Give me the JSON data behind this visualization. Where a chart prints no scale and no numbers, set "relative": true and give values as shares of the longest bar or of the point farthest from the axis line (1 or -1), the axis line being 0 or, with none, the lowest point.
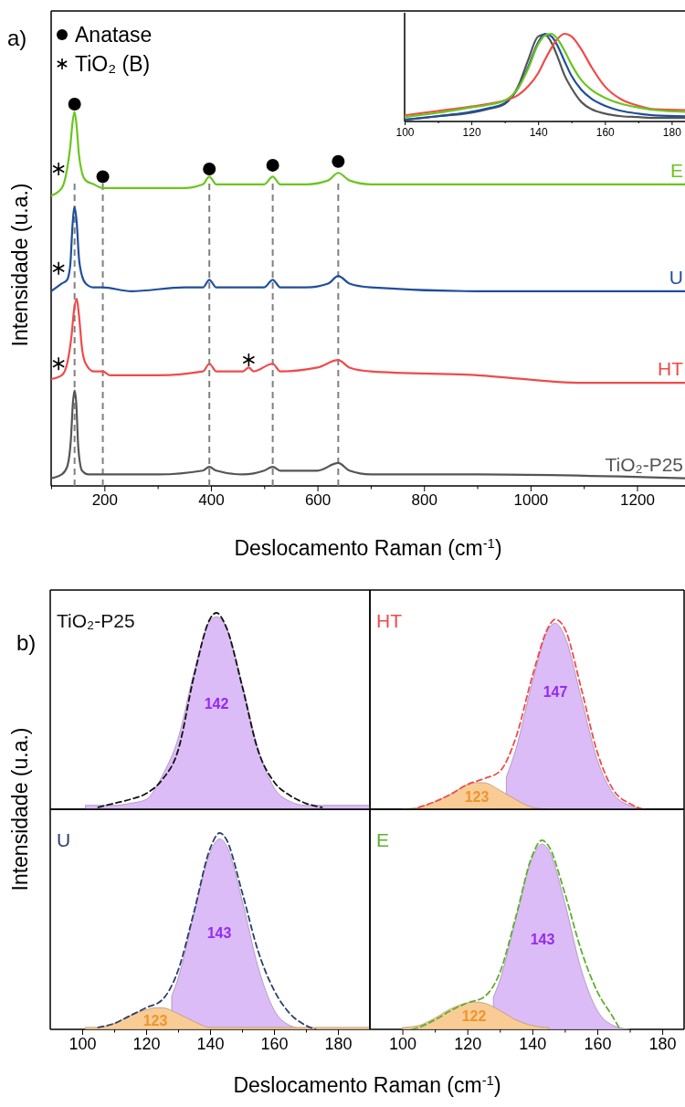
{
  "chart_data": [
    {
      "type": "line",
      "relative": true,
      "xlabel": "Deslocamento Raman (cm$^{-1}$)",
      "ylabel": "Intensidade (u.a.)",
      "xlim": [
        100,
        1290
      ],
      "xticks": [
        {
          "value": 100,
          "label": null
        },
        200,
        {
          "value": 300,
          "label": null
        },
        400,
        {
          "value": 500,
          "label": null
        },
        600,
        {
          "value": 700,
          "label": null
        },
        800,
        {
          "value": 900,
          "label": null
        },
        1000,
        {
          "value": 1100,
          "label": null
        },
        1200
      ],
      "tick_labels": "x",
      "legend": "top left",
      "annotations": [
        "a)"
      ],
      "ref_lines": [
        {
          "axis": "x",
          "value": 144,
          "color": "#808080",
          "line_style": "dashed"
        },
        {
          "axis": "x",
          "value": 197,
          "color": "#808080",
          "line_style": "dashed"
        },
        {
          "axis": "x",
          "value": 397,
          "color": "#808080",
          "line_style": "dashed"
        },
        {
          "axis": "x",
          "value": 516,
          "color": "#808080",
          "line_style": "dashed"
        },
        {
          "axis": "x",
          "value": 639,
          "color": "#808080",
          "line_style": "dashed"
        }
      ],
      "series": [
        {
          "name": "TiO₂-P25",
          "color": "#555555",
          "x": [
            100,
            120,
            130,
            137,
            141,
            144,
            147,
            151,
            158,
            170,
            197,
            300,
            385,
            397,
            410,
            460,
            500,
            516,
            530,
            600,
            639,
            660,
            700,
            900,
            1290
          ],
          "values": [
            0.02,
            0.03,
            0.05,
            0.12,
            0.22,
            0.25,
            0.22,
            0.1,
            0.04,
            0.03,
            0.03,
            0.03,
            0.04,
            0.05,
            0.04,
            0.03,
            0.04,
            0.05,
            0.04,
            0.04,
            0.06,
            0.04,
            0.03,
            0.03,
            0.02
          ]
        },
        {
          "name": "HT",
          "color": "#f04a4a",
          "x": [
            100,
            120,
            130,
            138,
            143,
            148,
            152,
            158,
            165,
            180,
            197,
            210,
            300,
            385,
            397,
            410,
            460,
            471,
            480,
            516,
            530,
            600,
            639,
            660,
            700,
            900,
            1100,
            1290
          ],
          "values": [
            0.28,
            0.29,
            0.32,
            0.39,
            0.46,
            0.49,
            0.45,
            0.36,
            0.32,
            0.3,
            0.3,
            0.29,
            0.29,
            0.3,
            0.32,
            0.3,
            0.3,
            0.31,
            0.3,
            0.32,
            0.3,
            0.31,
            0.33,
            0.31,
            0.3,
            0.29,
            0.27,
            0.27
          ]
        },
        {
          "name": "U",
          "color": "#1f4e9c",
          "x": [
            100,
            120,
            130,
            136,
            140,
            144,
            148,
            152,
            158,
            165,
            180,
            197,
            250,
            350,
            385,
            397,
            410,
            450,
            500,
            516,
            530,
            580,
            620,
            639,
            660,
            700,
            900,
            1100,
            1290
          ],
          "values": [
            0.51,
            0.53,
            0.54,
            0.58,
            0.68,
            0.73,
            0.69,
            0.6,
            0.55,
            0.53,
            0.52,
            0.52,
            0.51,
            0.52,
            0.52,
            0.54,
            0.52,
            0.52,
            0.52,
            0.54,
            0.52,
            0.52,
            0.53,
            0.55,
            0.53,
            0.52,
            0.51,
            0.51,
            0.51
          ]
        },
        {
          "name": "E",
          "color": "#6cc51f",
          "x": [
            100,
            120,
            130,
            136,
            140,
            144,
            148,
            152,
            158,
            165,
            180,
            197,
            250,
            350,
            385,
            397,
            410,
            450,
            500,
            516,
            530,
            580,
            620,
            639,
            660,
            700,
            900,
            1100,
            1290
          ],
          "values": [
            0.76,
            0.78,
            0.83,
            0.89,
            0.95,
            0.98,
            0.94,
            0.87,
            0.82,
            0.8,
            0.79,
            0.78,
            0.78,
            0.78,
            0.79,
            0.81,
            0.79,
            0.79,
            0.79,
            0.81,
            0.79,
            0.79,
            0.8,
            0.82,
            0.8,
            0.79,
            0.79,
            0.79,
            0.79
          ]
        },
        {
          "name": "Anatase",
          "type": "scatter",
          "marker": "circle",
          "color": "#000000",
          "x": [
            144,
            197,
            397,
            516,
            639
          ],
          "values": [
            1.0,
            0.81,
            0.83,
            0.84,
            0.85
          ]
        },
        {
          "name": "TiO₂ (B)",
          "type": "scatter",
          "marker": "cross",
          "color": "#000000",
          "x": [
            114,
            114,
            114,
            471
          ],
          "values": [
            0.83,
            0.57,
            0.32,
            0.33
          ]
        }
      ]
    },
    {
      "type": "line",
      "relative": true,
      "xlim": [
        100,
        184
      ],
      "xticks": [
        100,
        {
          "value": 110,
          "label": null
        },
        120,
        {
          "value": 130,
          "label": null
        },
        140,
        {
          "value": 150,
          "label": null
        },
        160,
        {
          "value": 170,
          "label": null
        },
        180
      ],
      "tick_labels": "x",
      "x": [
        100,
        110,
        120,
        125,
        130,
        134,
        137,
        140,
        142,
        144,
        146,
        148,
        150,
        153,
        156,
        160,
        165,
        170,
        175,
        184
      ],
      "series": [
        {
          "color": "#555555",
          "values": [
            0.02,
            0.06,
            0.1,
            0.14,
            0.2,
            0.4,
            0.7,
            0.97,
            0.99,
            0.9,
            0.72,
            0.52,
            0.38,
            0.22,
            0.14,
            0.09,
            0.06,
            0.05,
            0.04,
            0.04
          ]
        },
        {
          "color": "#1f4e9c",
          "values": [
            0.02,
            0.06,
            0.11,
            0.15,
            0.21,
            0.38,
            0.62,
            0.9,
            1.0,
            0.97,
            0.85,
            0.68,
            0.52,
            0.36,
            0.26,
            0.18,
            0.12,
            0.09,
            0.07,
            0.06
          ]
        },
        {
          "color": "#f04a4a",
          "values": [
            0.07,
            0.12,
            0.17,
            0.2,
            0.24,
            0.3,
            0.4,
            0.55,
            0.7,
            0.84,
            0.95,
            1.0,
            0.97,
            0.82,
            0.62,
            0.4,
            0.25,
            0.18,
            0.14,
            0.13
          ]
        },
        {
          "color": "#6cc51f",
          "values": [
            0.05,
            0.1,
            0.16,
            0.19,
            0.24,
            0.38,
            0.6,
            0.88,
            0.98,
            1.0,
            0.93,
            0.8,
            0.65,
            0.47,
            0.36,
            0.27,
            0.2,
            0.16,
            0.13,
            0.11
          ]
        }
      ]
    },
    {
      "type": "area",
      "relative": true,
      "title": "TiO₂-P25",
      "ylabel": "Intensidade (u.a.)",
      "xlim": [
        90,
        190
      ],
      "tick_labels": false,
      "annotations": [
        "b)",
        "142"
      ],
      "series": [
        {
          "color": "#dcbcf7",
          "x": [
            101,
            105,
            110,
            115,
            120,
            125,
            130,
            135,
            140,
            142,
            145,
            150,
            155,
            160,
            165,
            170,
            175,
            180,
            190
          ],
          "values": [
            0.02,
            0.02,
            0.02,
            0.03,
            0.05,
            0.17,
            0.36,
            0.7,
            0.96,
            0.98,
            0.93,
            0.64,
            0.31,
            0.11,
            0.04,
            0.02,
            0.02,
            0.02,
            0.02
          ]
        },
        {
          "type": "line",
          "line_style": "dashed",
          "color": "#111111",
          "x": [
            105,
            110,
            115,
            120,
            125,
            130,
            135,
            140,
            142,
            145,
            150,
            155,
            160,
            165,
            170,
            175
          ],
          "values": [
            0.01,
            0.03,
            0.05,
            0.08,
            0.15,
            0.3,
            0.68,
            0.97,
            1.0,
            0.93,
            0.63,
            0.3,
            0.14,
            0.07,
            0.03,
            0.01
          ]
        }
      ]
    },
    {
      "type": "area",
      "relative": true,
      "title": "HT",
      "xlim": [
        90,
        187
      ],
      "tick_labels": false,
      "annotations": [
        "147",
        "123"
      ],
      "series": [
        {
          "color": "#dcbcf7",
          "x": [
            132,
            135,
            140,
            145,
            147,
            150,
            155,
            160,
            165,
            170,
            175
          ],
          "values": [
            0.17,
            0.32,
            0.67,
            0.95,
            0.98,
            0.91,
            0.59,
            0.26,
            0.08,
            0.02,
            0
          ]
        },
        {
          "color": "#f9cc96",
          "x": [
            100,
            105,
            110,
            115,
            120,
            123,
            125,
            130,
            135,
            140,
            145
          ],
          "values": [
            0.002,
            0.01,
            0.04,
            0.08,
            0.13,
            0.14,
            0.14,
            0.1,
            0.05,
            0.01,
            0
          ]
        },
        {
          "type": "line",
          "line_style": "dashed",
          "color": "#f04a4a",
          "x": [
            105,
            110,
            115,
            120,
            125,
            130,
            135,
            140,
            145,
            147,
            150,
            155,
            160,
            165,
            170,
            174
          ],
          "values": [
            0.01,
            0.04,
            0.08,
            0.13,
            0.16,
            0.2,
            0.38,
            0.7,
            0.96,
            1.0,
            0.95,
            0.64,
            0.3,
            0.1,
            0.03,
            0
          ]
        }
      ]
    },
    {
      "type": "area",
      "relative": true,
      "title": "U",
      "xlabel": "Deslocamento Raman (cm$^{-1}$)",
      "xlim": [
        90,
        190
      ],
      "xticks": [
        100,
        {
          "value": 110,
          "label": null
        },
        120,
        {
          "value": 130,
          "label": null
        },
        140,
        {
          "value": 150,
          "label": null
        },
        160,
        {
          "value": 170,
          "label": null
        },
        180
      ],
      "tick_labels": "x",
      "annotations": [
        "143",
        "123"
      ],
      "series": [
        {
          "color": "#dcbcf7",
          "x": [
            128,
            130,
            135,
            140,
            143,
            145,
            150,
            155,
            160,
            165,
            170
          ],
          "values": [
            0.17,
            0.26,
            0.59,
            0.9,
            0.97,
            0.94,
            0.66,
            0.32,
            0.1,
            0.02,
            0
          ]
        },
        {
          "color": "#f9cc96",
          "x": [
            101,
            105,
            110,
            115,
            120,
            123,
            125,
            130,
            135,
            140,
            145,
            190
          ],
          "values": [
            0.01,
            0.01,
            0.03,
            0.07,
            0.1,
            0.11,
            0.11,
            0.08,
            0.04,
            0.01,
            0.01,
            0.01
          ]
        },
        {
          "type": "line",
          "line_style": "dashed",
          "color": "#2b3f6b",
          "x": [
            105,
            110,
            115,
            120,
            125,
            130,
            135,
            140,
            143,
            145,
            150,
            155,
            160,
            165,
            170,
            173
          ],
          "values": [
            0.01,
            0.03,
            0.07,
            0.11,
            0.15,
            0.3,
            0.6,
            0.92,
            1.0,
            0.97,
            0.7,
            0.4,
            0.2,
            0.08,
            0.02,
            0
          ]
        }
      ]
    },
    {
      "type": "area",
      "relative": true,
      "title": "E",
      "xlim": [
        90,
        187
      ],
      "xticks": [
        100,
        {
          "value": 110,
          "label": null
        },
        120,
        {
          "value": 130,
          "label": null
        },
        140,
        {
          "value": 150,
          "label": null
        },
        160,
        {
          "value": 170,
          "label": null
        },
        180
      ],
      "tick_labels": "x",
      "annotations": [
        "143",
        "122"
      ],
      "series": [
        {
          "color": "#dcbcf7",
          "x": [
            128,
            130,
            135,
            140,
            143,
            145,
            150,
            155,
            160,
            165,
            170
          ],
          "values": [
            0.17,
            0.26,
            0.59,
            0.91,
            0.98,
            0.95,
            0.67,
            0.32,
            0.1,
            0.02,
            0
          ]
        },
        {
          "color": "#f9cc96",
          "x": [
            100,
            105,
            110,
            115,
            120,
            122,
            125,
            130,
            135,
            140,
            145
          ],
          "values": [
            0.01,
            0.02,
            0.06,
            0.11,
            0.14,
            0.145,
            0.14,
            0.1,
            0.05,
            0.02,
            0.01
          ]
        },
        {
          "type": "line",
          "line_style": "dashed",
          "color": "#5fae2e",
          "x": [
            103,
            105,
            110,
            115,
            120,
            125,
            130,
            135,
            140,
            143,
            145,
            150,
            155,
            160,
            165,
            167
          ],
          "values": [
            0,
            0.01,
            0.05,
            0.1,
            0.14,
            0.17,
            0.3,
            0.6,
            0.92,
            1.0,
            0.97,
            0.72,
            0.42,
            0.2,
            0.06,
            0
          ]
        }
      ]
    }
  ]
}
